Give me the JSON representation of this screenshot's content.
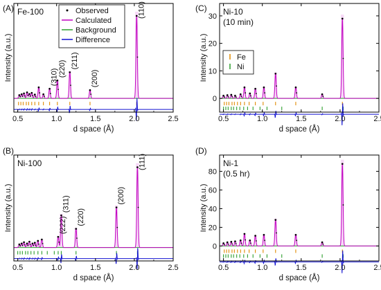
{
  "figure": {
    "description_lines": []
  },
  "colors": {
    "observed": "#000000",
    "calculated": "#c000c0",
    "background": "#2ca02c",
    "difference": "#1010d0",
    "tick_primary": "#e08a00",
    "tick_secondary": "#2a9d2a",
    "peak_shade": "#f0b8f0"
  },
  "chart_data": [
    {
      "panel_label": "(A)",
      "type": "line",
      "sample": [
        "Fe-100"
      ],
      "xlabel": "d space (Å)",
      "ylabel": "Intensity (a.u.)",
      "xlim": [
        0.45,
        2.5
      ],
      "xticks": [
        0.5,
        1.0,
        1.5,
        2.0,
        2.5
      ],
      "xtick_labels": [
        "0.5",
        "1.0",
        "1.5",
        "2.0",
        "2.5"
      ],
      "show_y_tick_labels": false,
      "ylim": [
        -5,
        33
      ],
      "legend": {
        "placement": "top-center",
        "entries": [
          {
            "label": "Observed",
            "style": "dot",
            "color_key": "observed"
          },
          {
            "label": "Calculated",
            "style": "line",
            "color_key": "calculated"
          },
          {
            "label": "Background",
            "style": "line",
            "color_key": "background"
          },
          {
            "label": "Difference",
            "style": "line",
            "color_key": "difference"
          }
        ]
      },
      "peaks": [
        {
          "d": 0.52,
          "h": 1.2
        },
        {
          "d": 0.55,
          "h": 1.5
        },
        {
          "d": 0.58,
          "h": 1.8
        },
        {
          "d": 0.62,
          "h": 2.2
        },
        {
          "d": 0.65,
          "h": 1.6
        },
        {
          "d": 0.68,
          "h": 2.0
        },
        {
          "d": 0.72,
          "h": 1.4
        },
        {
          "d": 0.77,
          "h": 4.0
        },
        {
          "d": 0.83,
          "h": 1.5
        },
        {
          "d": 0.91,
          "h": 3.5
        },
        {
          "d": 1.01,
          "h": 6.5
        },
        {
          "d": 1.17,
          "h": 9.5
        },
        {
          "d": 1.43,
          "h": 3.0
        },
        {
          "d": 2.03,
          "h": 30.0
        }
      ],
      "peak_labels": [
        {
          "text": "(310)",
          "d": 0.91
        },
        {
          "text": "(220)",
          "d": 1.01
        },
        {
          "text": "(211)",
          "d": 1.17
        },
        {
          "text": "(200)",
          "d": 1.43
        },
        {
          "text": "(110)",
          "d": 2.03
        }
      ],
      "tick_rows": [
        {
          "color_key": "tick_primary",
          "positions": [
            0.51,
            0.54,
            0.57,
            0.61,
            0.64,
            0.68,
            0.72,
            0.77,
            0.83,
            0.91,
            1.01,
            1.17,
            1.43,
            2.03
          ]
        }
      ]
    },
    {
      "panel_label": "(C)",
      "type": "line",
      "sample": [
        "Ni-10",
        "(10 min)"
      ],
      "xlabel": "d space (Å)",
      "ylabel": "Intensity (a.u.)",
      "xlim": [
        0.45,
        2.5
      ],
      "xticks": [
        0.5,
        1.0,
        1.5,
        2.0,
        2.5
      ],
      "xtick_labels": [
        "0.5",
        "1.0",
        "1.5",
        "2.0",
        "2.5"
      ],
      "show_y_tick_labels": true,
      "ylim": [
        -5,
        33
      ],
      "yticks": [
        0,
        10,
        20,
        30
      ],
      "ytick_labels": [
        "0",
        "10",
        "20",
        "30"
      ],
      "legend": {
        "placement": "center-left",
        "entries": [
          {
            "label": "Fe",
            "style": "tick",
            "color_key": "tick_primary"
          },
          {
            "label": "Ni",
            "style": "tick",
            "color_key": "tick_secondary"
          }
        ]
      },
      "peaks": [
        {
          "d": 0.5,
          "h": 1.0
        },
        {
          "d": 0.55,
          "h": 1.2
        },
        {
          "d": 0.6,
          "h": 1.3
        },
        {
          "d": 0.65,
          "h": 1.0
        },
        {
          "d": 0.72,
          "h": 1.5
        },
        {
          "d": 0.77,
          "h": 4.0
        },
        {
          "d": 0.84,
          "h": 1.8
        },
        {
          "d": 0.91,
          "h": 3.5
        },
        {
          "d": 1.02,
          "h": 4.0
        },
        {
          "d": 1.17,
          "h": 9.0
        },
        {
          "d": 1.43,
          "h": 4.0
        },
        {
          "d": 1.77,
          "h": 1.5
        },
        {
          "d": 2.03,
          "h": 29.0
        }
      ],
      "peak_labels": [],
      "tick_rows": [
        {
          "color_key": "tick_primary",
          "positions": [
            0.51,
            0.54,
            0.57,
            0.61,
            0.64,
            0.68,
            0.72,
            0.77,
            0.83,
            0.91,
            1.01,
            1.17,
            1.43,
            2.03
          ]
        },
        {
          "color_key": "tick_secondary",
          "positions": [
            0.5,
            0.53,
            0.56,
            0.6,
            0.63,
            0.67,
            0.71,
            0.76,
            0.81,
            0.88,
            0.97,
            1.06,
            1.25,
            1.77,
            2.04
          ]
        }
      ]
    },
    {
      "panel_label": "(B)",
      "type": "line",
      "sample": [
        "Ni-100"
      ],
      "xlabel": "d space (Å)",
      "ylabel": "Intensity (a.u.)",
      "xlim": [
        0.45,
        2.5
      ],
      "xticks": [
        0.5,
        1.0,
        1.5,
        2.0,
        2.5
      ],
      "xtick_labels": [
        "0.5",
        "1.0",
        "1.5",
        "2.0",
        "2.5"
      ],
      "show_y_tick_labels": false,
      "ylim": [
        -5,
        33
      ],
      "legend": null,
      "peaks": [
        {
          "d": 0.52,
          "h": 1.2
        },
        {
          "d": 0.55,
          "h": 1.5
        },
        {
          "d": 0.58,
          "h": 2.0
        },
        {
          "d": 0.62,
          "h": 1.5
        },
        {
          "d": 0.65,
          "h": 2.2
        },
        {
          "d": 0.69,
          "h": 1.5
        },
        {
          "d": 0.72,
          "h": 1.8
        },
        {
          "d": 0.76,
          "h": 2.5
        },
        {
          "d": 0.81,
          "h": 3.0
        },
        {
          "d": 1.02,
          "h": 4.0
        },
        {
          "d": 1.06,
          "h": 12.0
        },
        {
          "d": 1.25,
          "h": 7.0
        },
        {
          "d": 1.77,
          "h": 15.0
        },
        {
          "d": 2.04,
          "h": 30.0
        }
      ],
      "peak_labels": [
        {
          "text": "(222)",
          "d": 1.02
        },
        {
          "text": "(311)",
          "d": 1.06
        },
        {
          "text": "(220)",
          "d": 1.25
        },
        {
          "text": "(200)",
          "d": 1.77
        },
        {
          "text": "(111)",
          "d": 2.04
        }
      ],
      "tick_rows": [
        {
          "color_key": "tick_secondary",
          "positions": [
            0.5,
            0.53,
            0.56,
            0.6,
            0.63,
            0.67,
            0.71,
            0.76,
            0.81,
            0.88,
            0.97,
            1.02,
            1.06,
            1.25,
            1.77,
            2.04
          ]
        }
      ]
    },
    {
      "panel_label": "(D)",
      "type": "line",
      "sample": [
        "Ni-1",
        "(0.5 hr)"
      ],
      "xlabel": "d space (Å)",
      "ylabel": "Intensity (a.u.)",
      "xlim": [
        0.45,
        2.5
      ],
      "xticks": [
        0.5,
        1.0,
        1.5,
        2.0,
        2.5
      ],
      "xtick_labels": [
        "0.5",
        "1.0",
        "1.5",
        "2.0",
        "2.5"
      ],
      "show_y_tick_labels": true,
      "ylim": [
        -16,
        93
      ],
      "yticks": [
        0,
        20,
        40,
        60,
        80
      ],
      "ytick_labels": [
        "0",
        "20",
        "40",
        "60",
        "80"
      ],
      "legend": null,
      "peaks": [
        {
          "d": 0.5,
          "h": 3.0
        },
        {
          "d": 0.55,
          "h": 4.0
        },
        {
          "d": 0.6,
          "h": 4.5
        },
        {
          "d": 0.65,
          "h": 5.0
        },
        {
          "d": 0.72,
          "h": 6.0
        },
        {
          "d": 0.77,
          "h": 13.0
        },
        {
          "d": 0.84,
          "h": 6.0
        },
        {
          "d": 0.91,
          "h": 11.0
        },
        {
          "d": 1.02,
          "h": 12.0
        },
        {
          "d": 1.17,
          "h": 28.0
        },
        {
          "d": 1.43,
          "h": 12.0
        },
        {
          "d": 1.77,
          "h": 4.0
        },
        {
          "d": 2.03,
          "h": 88.0
        }
      ],
      "peak_labels": [],
      "tick_rows": [
        {
          "color_key": "tick_primary",
          "positions": [
            0.51,
            0.54,
            0.57,
            0.61,
            0.64,
            0.68,
            0.72,
            0.77,
            0.83,
            0.91,
            1.01,
            1.17,
            1.43,
            2.03
          ]
        },
        {
          "color_key": "tick_secondary",
          "positions": [
            0.5,
            0.53,
            0.56,
            0.6,
            0.63,
            0.67,
            0.71,
            0.76,
            0.81,
            0.88,
            0.97,
            1.06,
            1.25,
            1.77,
            2.04
          ]
        }
      ]
    }
  ]
}
